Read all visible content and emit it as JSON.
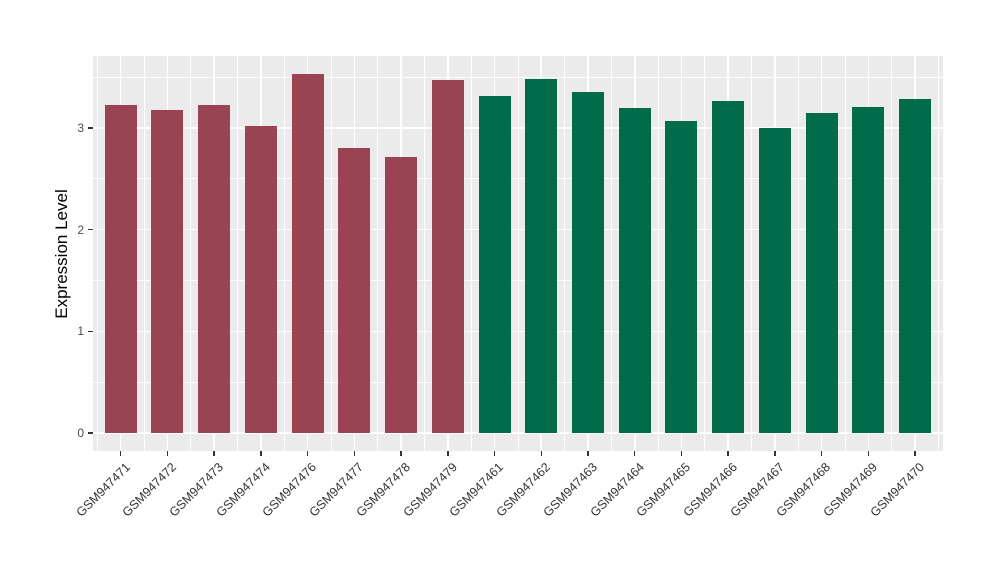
{
  "figure": {
    "background_color": "#FFFFFF",
    "panel_background_color": "#EBEBEB",
    "gridline_color": "#FFFFFF",
    "axis_text_color": "#4D4D4D",
    "x_label_color": "#333333",
    "tick_mark_color": "#333333"
  },
  "chart_data": {
    "type": "bar",
    "title": "",
    "xlabel": "",
    "ylabel": "Expression Level",
    "legend": "none",
    "grid": true,
    "ylim": [
      0,
      3.71
    ],
    "y_major_ticks": [
      0,
      1,
      2,
      3
    ],
    "y_minor_ticks": [
      0.5,
      1.5,
      2.5,
      3.5
    ],
    "categories": [
      "GSM947471",
      "GSM947472",
      "GSM947473",
      "GSM947474",
      "GSM947476",
      "GSM947477",
      "GSM947478",
      "GSM947479",
      "GSM947461",
      "GSM947462",
      "GSM947463",
      "GSM947464",
      "GSM947465",
      "GSM947466",
      "GSM947467",
      "GSM947468",
      "GSM947469",
      "GSM947470"
    ],
    "values": [
      3.23,
      3.18,
      3.23,
      3.02,
      3.53,
      2.8,
      2.71,
      3.47,
      3.31,
      3.48,
      3.35,
      3.2,
      3.07,
      3.26,
      3.0,
      3.15,
      3.21,
      3.28
    ],
    "groups": [
      "maroon-group",
      "maroon-group",
      "maroon-group",
      "maroon-group",
      "maroon-group",
      "maroon-group",
      "maroon-group",
      "maroon-group",
      "green-group",
      "green-group",
      "green-group",
      "green-group",
      "green-group",
      "green-group",
      "green-group",
      "green-group",
      "green-group",
      "green-group"
    ],
    "group_colors": {
      "maroon-group": "#9A4453",
      "green-group": "#026B49"
    }
  }
}
